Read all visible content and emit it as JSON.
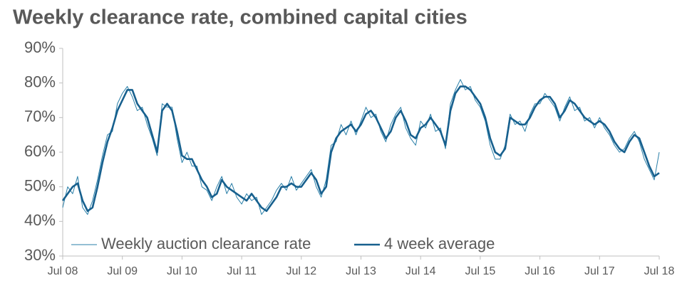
{
  "chart_data": {
    "type": "line",
    "title": "Weekly clearance rate, combined capital cities",
    "categories": [
      "Jul 08",
      null,
      null,
      null,
      null,
      null,
      null,
      null,
      null,
      null,
      null,
      null,
      "Jul 09",
      null,
      null,
      null,
      null,
      null,
      null,
      null,
      null,
      null,
      null,
      null,
      "Jul 10",
      null,
      null,
      null,
      null,
      null,
      null,
      null,
      null,
      null,
      null,
      null,
      "Jul 11",
      null,
      null,
      null,
      null,
      null,
      null,
      null,
      null,
      null,
      null,
      null,
      "Jul 12",
      null,
      null,
      null,
      null,
      null,
      null,
      null,
      null,
      null,
      null,
      null,
      "Jul 13",
      null,
      null,
      null,
      null,
      null,
      null,
      null,
      null,
      null,
      null,
      null,
      "Jul 14",
      null,
      null,
      null,
      null,
      null,
      null,
      null,
      null,
      null,
      null,
      null,
      "Jul 15",
      null,
      null,
      null,
      null,
      null,
      null,
      null,
      null,
      null,
      null,
      null,
      "Jul 16",
      null,
      null,
      null,
      null,
      null,
      null,
      null,
      null,
      null,
      null,
      null,
      "Jul 17",
      null,
      null,
      null,
      null,
      null,
      null,
      null,
      null,
      null,
      null,
      null,
      "Jul 18"
    ],
    "series": [
      {
        "name": "Weekly auction clearance rate",
        "color": "#2a7fa8",
        "width": 1,
        "values": [
          44,
          50,
          48,
          53,
          44,
          42,
          46,
          52,
          59,
          65,
          66,
          74,
          77,
          79,
          76,
          72,
          73,
          68,
          64,
          59,
          74,
          73,
          73,
          64,
          57,
          60,
          56,
          56,
          50,
          49,
          46,
          50,
          53,
          48,
          51,
          47,
          45,
          48,
          46,
          47,
          42,
          44,
          46,
          49,
          51,
          49,
          53,
          49,
          51,
          53,
          55,
          50,
          47,
          52,
          62,
          63,
          68,
          65,
          69,
          65,
          69,
          73,
          70,
          71,
          66,
          63,
          68,
          71,
          73,
          67,
          64,
          62,
          69,
          67,
          71,
          66,
          67,
          61,
          74,
          78,
          81,
          78,
          79,
          75,
          73,
          69,
          62,
          58,
          58,
          62,
          71,
          68,
          69,
          66,
          71,
          74,
          74,
          77,
          75,
          73,
          69,
          73,
          76,
          72,
          73,
          69,
          70,
          67,
          70,
          67,
          65,
          62,
          60,
          61,
          64,
          66,
          63,
          58,
          55,
          52,
          60
        ]
      },
      {
        "name": "4 week average",
        "color": "#17608e",
        "width": 2.6,
        "values": [
          46,
          48,
          50,
          51,
          46,
          43,
          44,
          50,
          57,
          63,
          67,
          72,
          75,
          78,
          78,
          74,
          72,
          70,
          65,
          60,
          72,
          74,
          72,
          66,
          59,
          58,
          58,
          55,
          52,
          50,
          47,
          48,
          52,
          50,
          49,
          48,
          47,
          46,
          48,
          46,
          44,
          43,
          45,
          47,
          50,
          50,
          51,
          50,
          50,
          52,
          54,
          52,
          48,
          50,
          60,
          64,
          66,
          67,
          68,
          66,
          68,
          71,
          72,
          70,
          67,
          64,
          66,
          70,
          72,
          69,
          65,
          64,
          67,
          68,
          70,
          68,
          66,
          62,
          72,
          77,
          79,
          79,
          78,
          76,
          74,
          70,
          64,
          60,
          59,
          61,
          70,
          69,
          68,
          68,
          70,
          73,
          75,
          76,
          76,
          74,
          70,
          72,
          75,
          74,
          72,
          70,
          69,
          68,
          69,
          68,
          66,
          63,
          61,
          60,
          63,
          65,
          64,
          60,
          56,
          53,
          54
        ]
      }
    ],
    "ylim": [
      30,
      90
    ],
    "yticks": [
      {
        "value": 30,
        "label": "30%"
      },
      {
        "value": 40,
        "label": "40%"
      },
      {
        "value": 50,
        "label": "50%"
      },
      {
        "value": 60,
        "label": "60%"
      },
      {
        "value": 70,
        "label": "70%"
      },
      {
        "value": 80,
        "label": "80%"
      },
      {
        "value": 90,
        "label": "90%"
      }
    ],
    "grid": false
  }
}
